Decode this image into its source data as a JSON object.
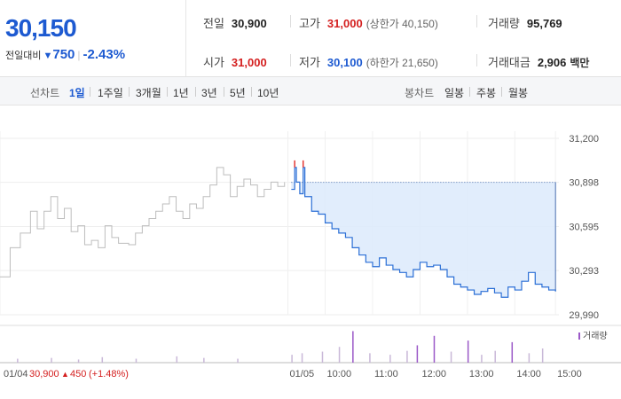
{
  "summary": {
    "current_price": "30,150",
    "change_label": "전일대비",
    "change_arrow": "▼",
    "change_value": "750",
    "change_percent": "-2.43%",
    "direction_color": "#1d5ad1"
  },
  "stats": {
    "prev_close": {
      "label": "전일",
      "value": "30,900"
    },
    "high": {
      "label": "고가",
      "value": "31,000",
      "sub": "(상한가 40,150)"
    },
    "volume": {
      "label": "거래량",
      "value": "95,769"
    },
    "open": {
      "label": "시가",
      "value": "31,000"
    },
    "low": {
      "label": "저가",
      "value": "30,100",
      "sub": "(하한가 21,650)"
    },
    "trade_amount": {
      "label": "거래대금",
      "value": "2,906",
      "unit": "백만"
    }
  },
  "tabs": {
    "line_label": "선차트",
    "line_periods": [
      "1일",
      "1주일",
      "3개월",
      "1년",
      "3년",
      "5년",
      "10년"
    ],
    "line_selected": "1일",
    "candle_label": "봉차트",
    "candle_periods": [
      "일봉",
      "주봉",
      "월봉"
    ]
  },
  "chart_data": {
    "type": "line",
    "title": "",
    "xlabel": "",
    "ylabel": "",
    "y_ticks": [
      "31,200",
      "30,898",
      "30,595",
      "30,293",
      "29,990"
    ],
    "ylim": [
      29990,
      31200
    ],
    "reference_price": 30898,
    "x_ticks": [
      "01/04",
      "01/05",
      "10:00",
      "11:00",
      "12:00",
      "13:00",
      "14:00",
      "15:00"
    ],
    "prev_day_footer": {
      "date": "01/04",
      "price": "30,900",
      "arrow": "▲",
      "change": "450",
      "percent": "(+1.48%)"
    },
    "volume_legend": "거래량",
    "series": [
      {
        "style": "gray-previous-day",
        "points": [
          [
            0,
            30250
          ],
          [
            0.3,
            30450
          ],
          [
            0.6,
            30550
          ],
          [
            0.9,
            30700
          ],
          [
            1.1,
            30580
          ],
          [
            1.3,
            30700
          ],
          [
            1.5,
            30800
          ],
          [
            1.7,
            30650
          ],
          [
            1.9,
            30720
          ],
          [
            2.1,
            30560
          ],
          [
            2.3,
            30600
          ],
          [
            2.5,
            30470
          ],
          [
            2.7,
            30500
          ],
          [
            2.9,
            30450
          ],
          [
            3.1,
            30600
          ],
          [
            3.3,
            30520
          ],
          [
            3.5,
            30480
          ],
          [
            3.8,
            30470
          ],
          [
            4.0,
            30550
          ],
          [
            4.2,
            30600
          ],
          [
            4.4,
            30650
          ],
          [
            4.6,
            30700
          ],
          [
            4.8,
            30750
          ],
          [
            5.0,
            30800
          ],
          [
            5.2,
            30700
          ],
          [
            5.4,
            30650
          ],
          [
            5.6,
            30750
          ],
          [
            5.8,
            30720
          ],
          [
            6.0,
            30800
          ],
          [
            6.2,
            30880
          ],
          [
            6.4,
            31000
          ],
          [
            6.6,
            30950
          ],
          [
            6.8,
            30800
          ],
          [
            7.0,
            30870
          ],
          [
            7.2,
            30920
          ],
          [
            7.4,
            30880
          ],
          [
            7.6,
            30800
          ],
          [
            7.8,
            30850
          ],
          [
            8.0,
            30900
          ],
          [
            8.2,
            30870
          ],
          [
            8.4,
            30900
          ]
        ]
      },
      {
        "style": "blue-current-day",
        "points": [
          [
            8.6,
            30850
          ],
          [
            8.7,
            31000
          ],
          [
            8.75,
            30900
          ],
          [
            8.85,
            30820
          ],
          [
            8.95,
            31000
          ],
          [
            9.0,
            30800
          ],
          [
            9.2,
            30700
          ],
          [
            9.4,
            30680
          ],
          [
            9.6,
            30620
          ],
          [
            9.8,
            30580
          ],
          [
            10.0,
            30550
          ],
          [
            10.2,
            30520
          ],
          [
            10.4,
            30450
          ],
          [
            10.6,
            30400
          ],
          [
            10.8,
            30350
          ],
          [
            11.0,
            30320
          ],
          [
            11.2,
            30380
          ],
          [
            11.4,
            30330
          ],
          [
            11.6,
            30300
          ],
          [
            11.8,
            30280
          ],
          [
            12.0,
            30250
          ],
          [
            12.2,
            30300
          ],
          [
            12.4,
            30350
          ],
          [
            12.6,
            30320
          ],
          [
            12.8,
            30330
          ],
          [
            13.0,
            30300
          ],
          [
            13.2,
            30250
          ],
          [
            13.4,
            30200
          ],
          [
            13.6,
            30180
          ],
          [
            13.8,
            30160
          ],
          [
            14.0,
            30130
          ],
          [
            14.2,
            30150
          ],
          [
            14.4,
            30170
          ],
          [
            14.6,
            30140
          ],
          [
            14.8,
            30110
          ],
          [
            15.0,
            30180
          ],
          [
            15.2,
            30160
          ],
          [
            15.4,
            30220
          ],
          [
            15.6,
            30280
          ],
          [
            15.8,
            30200
          ],
          [
            16.0,
            30180
          ],
          [
            16.2,
            30160
          ],
          [
            16.4,
            30150
          ]
        ]
      }
    ],
    "volume_bars": [
      [
        0.5,
        5
      ],
      [
        1.5,
        6
      ],
      [
        2.3,
        4
      ],
      [
        3.0,
        7
      ],
      [
        4.0,
        5
      ],
      [
        5.2,
        8
      ],
      [
        6.0,
        6
      ],
      [
        7.0,
        5
      ],
      [
        8.6,
        10
      ],
      [
        8.9,
        12
      ],
      [
        9.5,
        14
      ],
      [
        10.0,
        20
      ],
      [
        10.4,
        40
      ],
      [
        10.9,
        12
      ],
      [
        11.5,
        10
      ],
      [
        12.0,
        15
      ],
      [
        12.3,
        22
      ],
      [
        12.8,
        34
      ],
      [
        13.3,
        14
      ],
      [
        13.8,
        28
      ],
      [
        14.2,
        10
      ],
      [
        14.6,
        15
      ],
      [
        15.1,
        26
      ],
      [
        15.6,
        12
      ],
      [
        16.0,
        18
      ]
    ]
  }
}
